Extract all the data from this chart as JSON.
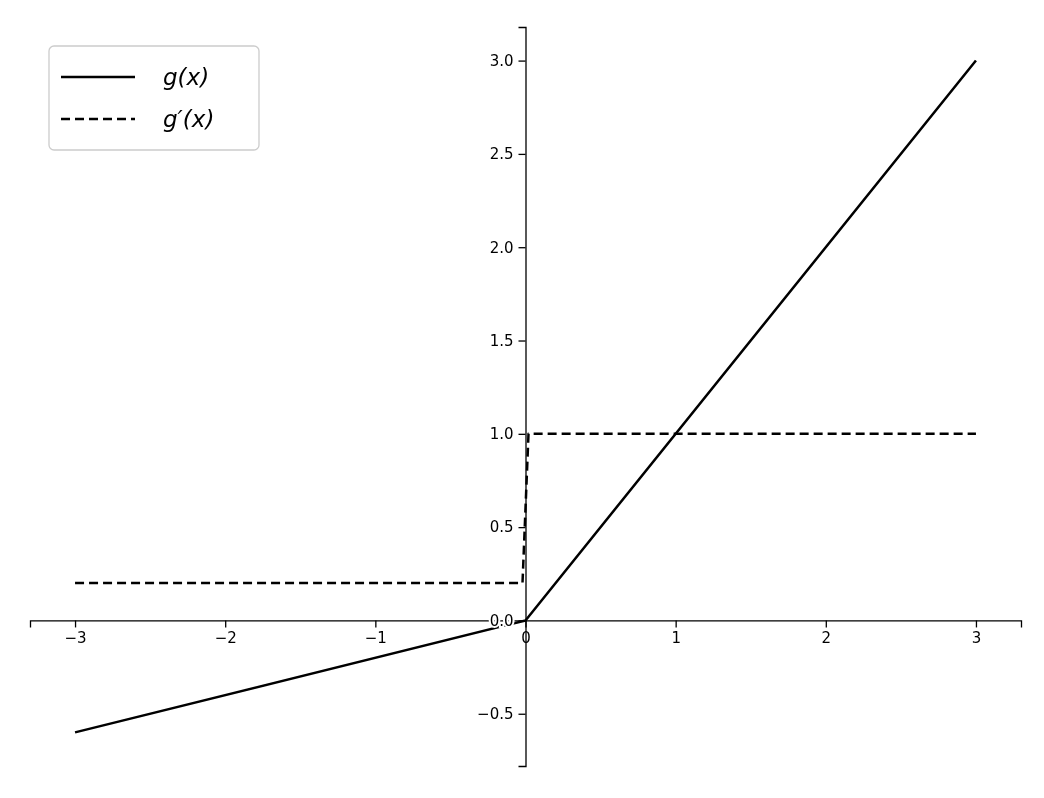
{
  "chart_data": {
    "type": "line",
    "xlim": [
      -3.3,
      3.3
    ],
    "ylim": [
      -0.78,
      3.18
    ],
    "xticks": [
      {
        "value": -3,
        "label": "−3"
      },
      {
        "value": -2,
        "label": "−2"
      },
      {
        "value": -1,
        "label": "−1"
      },
      0,
      1,
      2,
      3
    ],
    "yticks": [
      {
        "value": -0.5,
        "label": "−0.5"
      },
      {
        "value": 0,
        "label": "0.0"
      },
      {
        "value": 0.5,
        "label": "0.5"
      },
      {
        "value": 1,
        "label": "1.0"
      },
      {
        "value": 1.5,
        "label": "1.5"
      },
      {
        "value": 2,
        "label": "2.0"
      },
      {
        "value": 2.5,
        "label": "2.5"
      },
      {
        "value": 3,
        "label": "3.0"
      }
    ],
    "legend": "top left",
    "series": [
      {
        "name": "g(x)",
        "color": "#000000",
        "line_style": "solid",
        "x": [
          -3,
          0,
          3
        ],
        "values": [
          -0.6,
          0,
          3
        ]
      },
      {
        "name": "g′(x)",
        "color": "#000000",
        "line_style": "dashed",
        "x": [
          -3,
          -0.02,
          0.02,
          3
        ],
        "values": [
          0.2,
          0.2,
          1,
          1
        ]
      }
    ]
  }
}
